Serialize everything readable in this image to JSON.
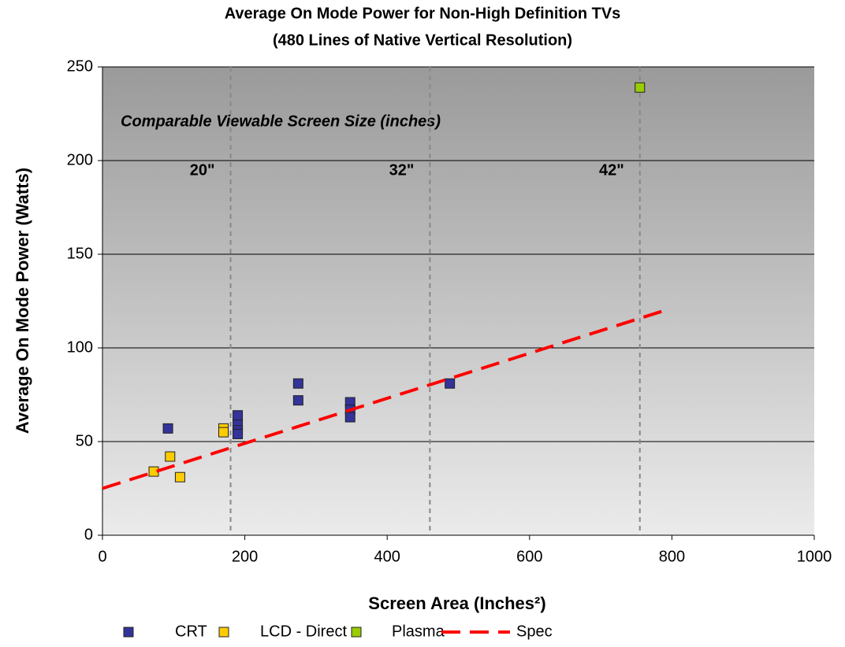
{
  "chart_data": {
    "type": "scatter",
    "title": "Average On Mode Power for Non-High Definition TVs",
    "subtitle": "(480 Lines of Native Vertical Resolution)",
    "x_label": "Screen Area (Inches²)",
    "y_label": "Average On Mode Power (Watts)",
    "annotation": "Comparable Viewable Screen Size (inches)",
    "reference_lines": [
      {
        "x": 180,
        "label": "20\""
      },
      {
        "x": 460,
        "label": "32\""
      },
      {
        "x": 755,
        "label": "42\""
      }
    ],
    "xlim": [
      0,
      1000
    ],
    "xticks": [
      0,
      200,
      400,
      600,
      800,
      1000
    ],
    "ylim": [
      0,
      250
    ],
    "yticks": [
      0,
      50,
      100,
      150,
      200,
      250
    ],
    "grid": true,
    "series": [
      {
        "name": "CRT",
        "color": "#333399",
        "kind": "marker",
        "x": [
          92,
          190,
          190,
          190,
          190,
          275,
          275,
          348,
          348,
          348,
          488
        ],
        "values": [
          57,
          64,
          59,
          56,
          54,
          81,
          72,
          71,
          67,
          63,
          81
        ]
      },
      {
        "name": "LCD - Direct",
        "color": "#ffcc00",
        "kind": "marker",
        "x": [
          72,
          95,
          109,
          170,
          170
        ],
        "values": [
          34,
          42,
          31,
          57,
          55
        ]
      },
      {
        "name": "Plasma",
        "color": "#99cc00",
        "kind": "marker",
        "x": [
          755
        ],
        "values": [
          239
        ]
      },
      {
        "name": "Spec",
        "color": "#ff0000",
        "kind": "line",
        "x": [
          0,
          790
        ],
        "values": [
          25,
          120
        ]
      }
    ]
  }
}
